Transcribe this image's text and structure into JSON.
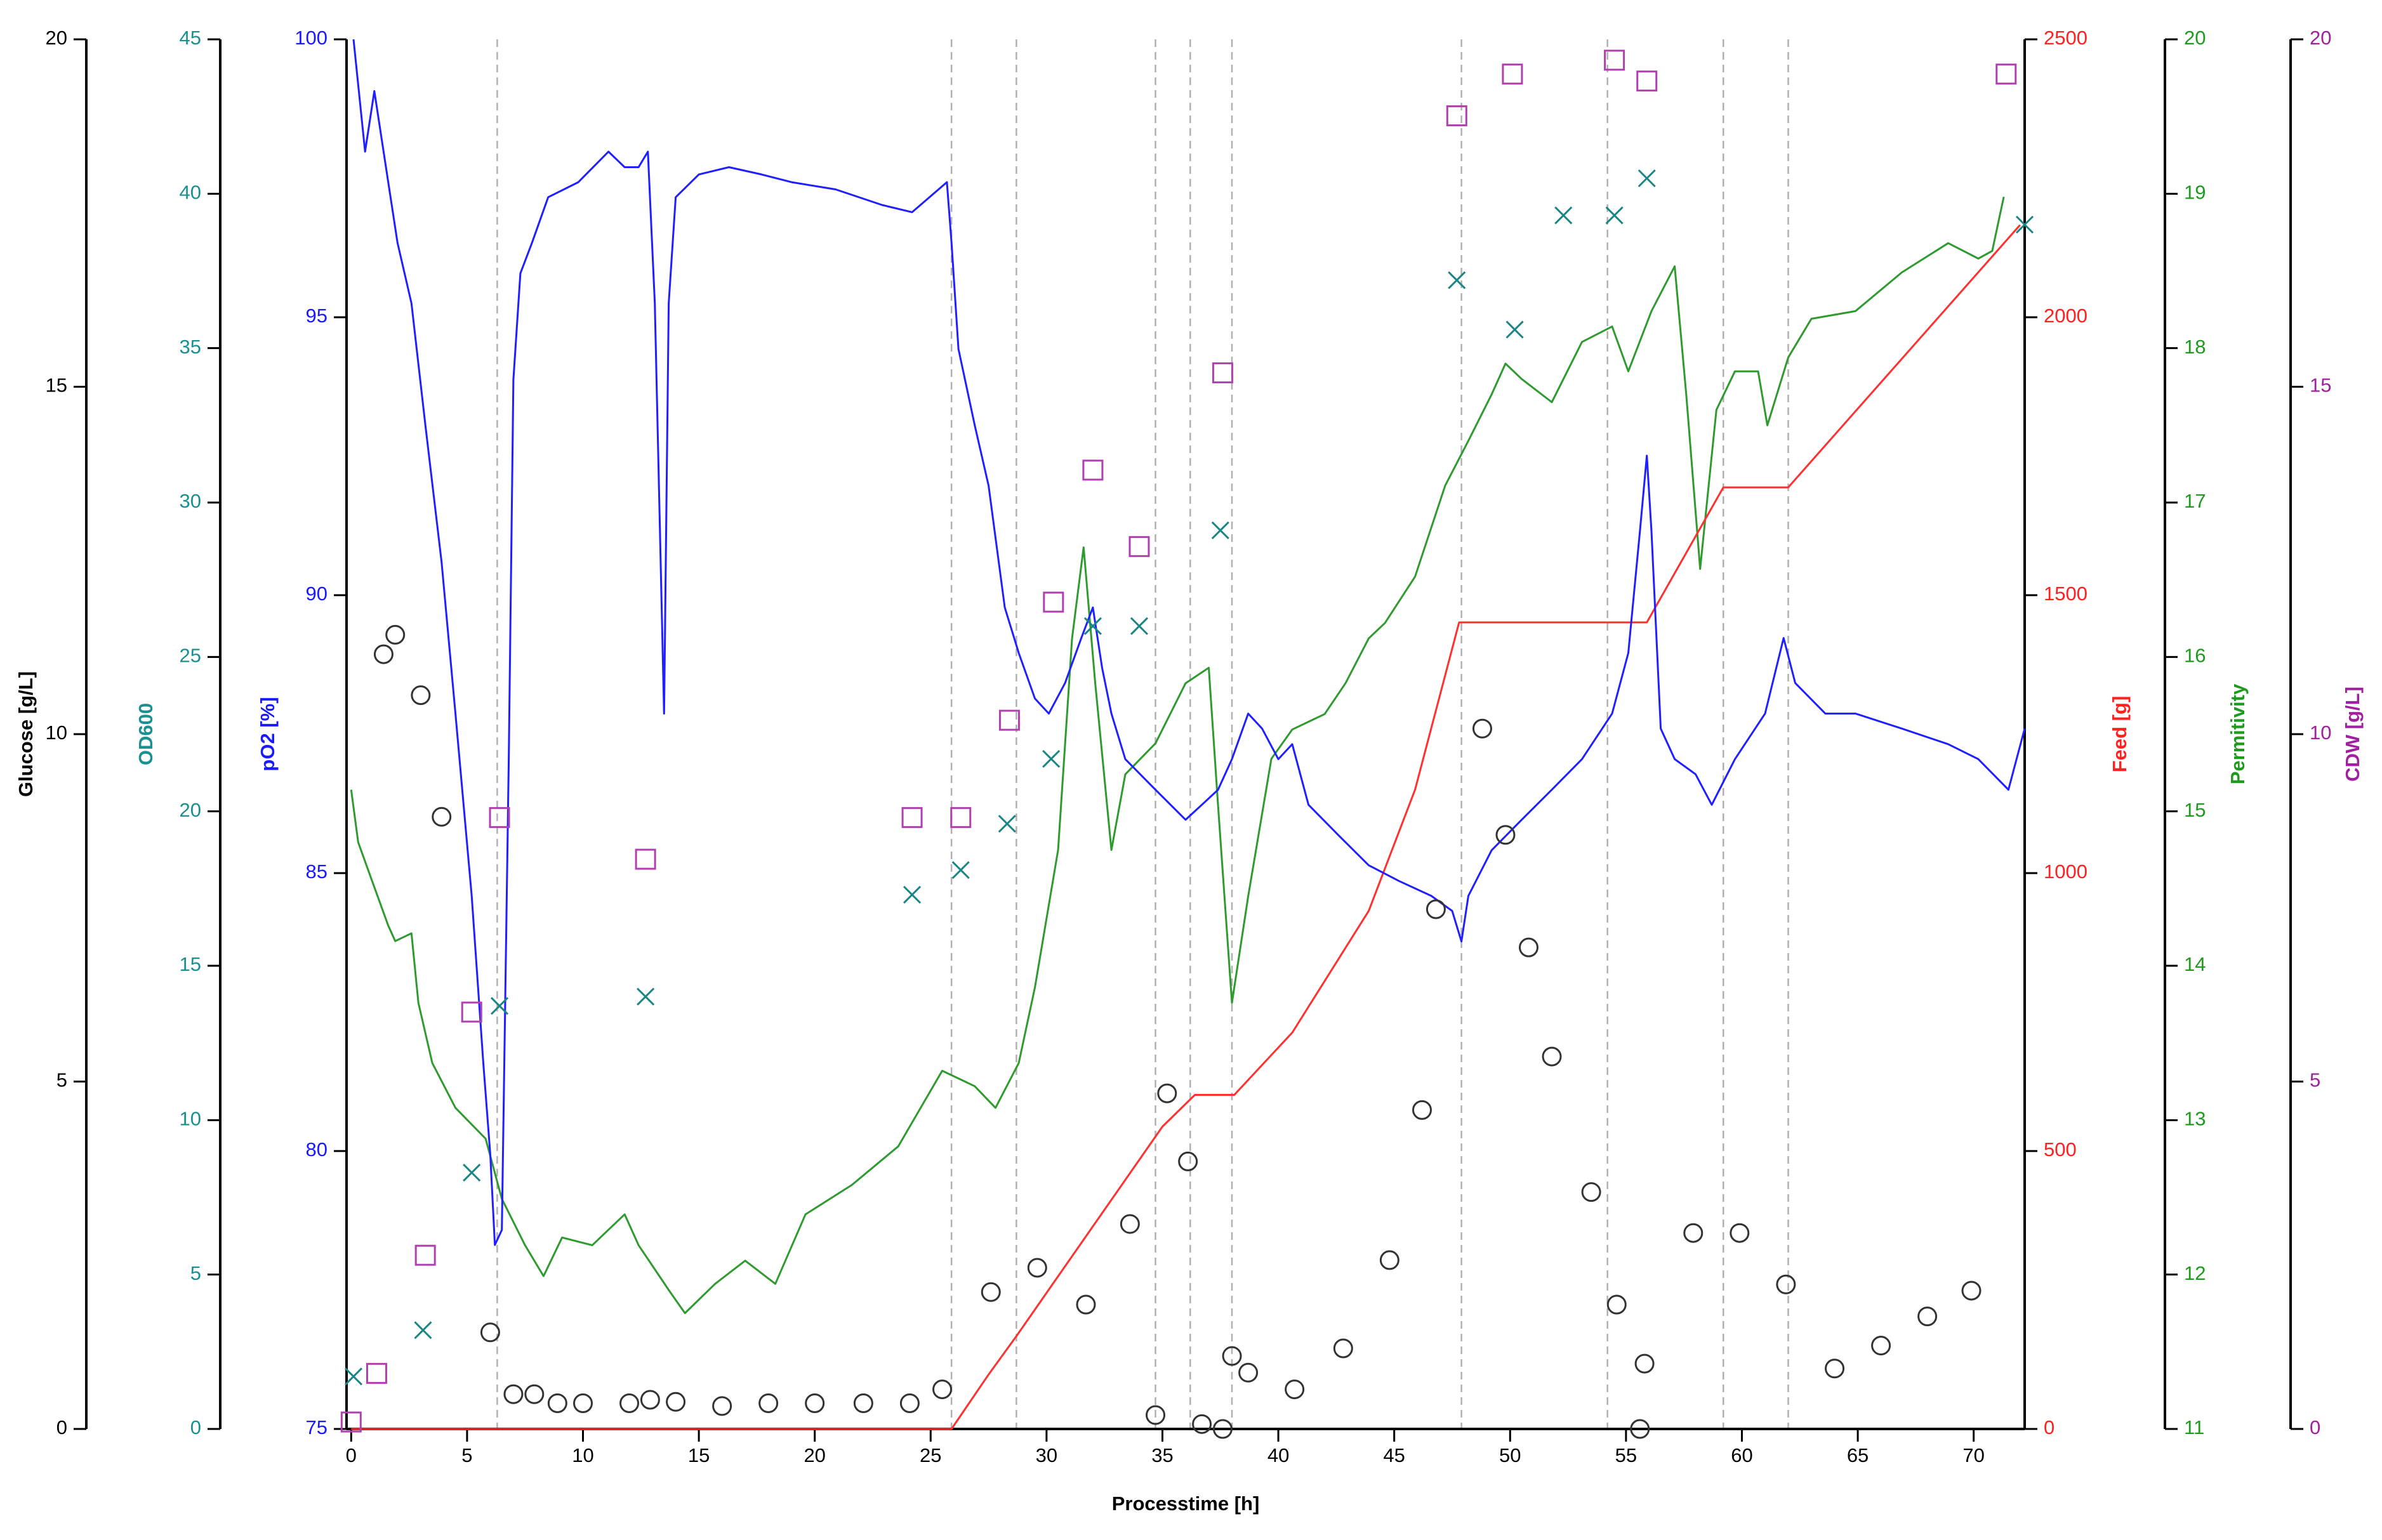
{
  "chart_data": {
    "type": "multi-axis",
    "xlabel": "Processtime [h]",
    "xlim": [
      -0.2,
      72.2
    ],
    "xticks": [
      0,
      5,
      10,
      15,
      20,
      25,
      30,
      35,
      40,
      45,
      50,
      55,
      60,
      65,
      70
    ],
    "vlines": [
      6.3,
      25.9,
      28.7,
      34.7,
      36.2,
      38.0,
      47.9,
      54.2,
      59.2,
      62.0
    ],
    "vline_color": "#b0b0b0",
    "axes": [
      {
        "label": "Glucose [g/L]",
        "color": "#000000",
        "side": "left",
        "ylim": [
          0,
          20
        ],
        "yticks": [
          0,
          5,
          10,
          15,
          20
        ]
      },
      {
        "label": "OD600",
        "color": "#1a9090",
        "side": "left",
        "ylim": [
          0,
          45
        ],
        "yticks": [
          0,
          5,
          10,
          15,
          20,
          25,
          30,
          35,
          40,
          45
        ]
      },
      {
        "label": "pO2 [%]",
        "color": "#1a1aff",
        "side": "left",
        "ylim": [
          75,
          100
        ],
        "yticks": [
          75,
          80,
          85,
          90,
          95,
          100
        ]
      },
      {
        "label": "Feed [g]",
        "color": "#ff2020",
        "side": "right",
        "ylim": [
          0,
          2500
        ],
        "yticks": [
          0,
          500,
          1000,
          1500,
          2000,
          2500
        ]
      },
      {
        "label": "Permitivity",
        "color": "#1f9a1f",
        "side": "right",
        "ylim": [
          11,
          20
        ],
        "yticks": [
          11,
          12,
          13,
          14,
          15,
          16,
          17,
          18,
          19,
          20
        ]
      },
      {
        "label": "CDW [g/L]",
        "color": "#a020a0",
        "side": "right",
        "ylim": [
          0,
          20
        ],
        "yticks": [
          0,
          5,
          10,
          15,
          20
        ]
      }
    ],
    "series": [
      {
        "type": "line",
        "axis": 4,
        "color": "#2f9a2f",
        "x": [
          0.0,
          0.3,
          0.9,
          1.6,
          1.9,
          2.6,
          2.9,
          3.5,
          4.5,
          5.8,
          6.5,
          7.5,
          8.3,
          9.1,
          10.4,
          11.8,
          12.4,
          13.7,
          14.4,
          15.7,
          17.0,
          18.3,
          19.6,
          21.6,
          23.6,
          25.5,
          26.9,
          27.8,
          28.8,
          29.5,
          30.5,
          31.1,
          31.6,
          32.1,
          32.8,
          33.4,
          34.7,
          36.0,
          37.0,
          37.4,
          38.0,
          38.7,
          39.7,
          40.6,
          42.0,
          42.9,
          43.9,
          44.6,
          45.9,
          47.2,
          48.2,
          49.2,
          49.8,
          50.5,
          51.8,
          53.1,
          54.4,
          55.1,
          56.1,
          57.1,
          57.6,
          58.2,
          58.9,
          59.7,
          60.7,
          61.1,
          62.0,
          63.0,
          64.9,
          66.9,
          68.9,
          70.2,
          70.8,
          71.3
        ],
        "values": [
          15.14,
          14.8,
          14.55,
          14.26,
          14.16,
          14.21,
          13.76,
          13.37,
          13.08,
          12.88,
          12.49,
          12.19,
          11.99,
          12.24,
          12.19,
          12.39,
          12.19,
          11.9,
          11.75,
          11.94,
          12.09,
          11.94,
          12.39,
          12.58,
          12.83,
          13.32,
          13.22,
          13.08,
          13.37,
          13.86,
          14.75,
          16.12,
          16.71,
          15.83,
          14.75,
          15.24,
          15.44,
          15.83,
          15.93,
          15.04,
          13.76,
          14.45,
          15.34,
          15.53,
          15.63,
          15.83,
          16.12,
          16.22,
          16.52,
          17.11,
          17.4,
          17.7,
          17.9,
          17.8,
          17.65,
          18.04,
          18.14,
          17.85,
          18.24,
          18.53,
          17.7,
          16.57,
          17.6,
          17.85,
          17.85,
          17.5,
          17.94,
          18.19,
          18.24,
          18.49,
          18.68,
          18.58,
          18.63,
          18.98
        ]
      },
      {
        "type": "line",
        "axis": 3,
        "color": "#ff3030",
        "x": [
          0,
          25.9,
          27.5,
          28.7,
          35.0,
          36.4,
          38.1,
          40.6,
          43.9,
          45.9,
          47.8,
          55.9,
          59.2,
          62.0,
          72.0
        ],
        "values": [
          0,
          0,
          98,
          167,
          544,
          601,
          601,
          713,
          932,
          1150,
          1451,
          1451,
          1694,
          1694,
          2166
        ]
      },
      {
        "type": "line",
        "axis": 2,
        "color": "#1f1fff",
        "x": [
          0.1,
          0.6,
          1.0,
          1.6,
          2.0,
          2.6,
          3.2,
          3.9,
          4.5,
          5.2,
          5.7,
          6.0,
          6.2,
          6.5,
          6.8,
          7.0,
          7.3,
          7.8,
          8.5,
          9.8,
          11.1,
          11.8,
          12.4,
          12.8,
          13.1,
          13.5,
          13.7,
          14.0,
          15.0,
          16.3,
          17.7,
          19.0,
          20.9,
          22.9,
          24.2,
          25.7,
          25.9,
          26.2,
          26.9,
          27.5,
          28.2,
          28.8,
          29.5,
          30.1,
          30.8,
          31.5,
          32.0,
          32.4,
          32.8,
          33.4,
          34.7,
          36.0,
          36.7,
          37.4,
          38.0,
          38.7,
          39.3,
          40.0,
          40.6,
          41.3,
          42.6,
          43.9,
          45.2,
          46.6,
          47.5,
          47.9,
          48.2,
          49.2,
          50.5,
          51.8,
          53.1,
          54.4,
          55.1,
          55.6,
          55.9,
          56.1,
          56.5,
          57.1,
          58.0,
          58.7,
          59.7,
          61.0,
          61.8,
          62.3,
          63.6,
          64.9,
          66.9,
          68.9,
          70.2,
          71.5,
          72.2
        ],
        "values": [
          100.0,
          97.98,
          99.07,
          97.43,
          96.34,
          95.25,
          93.06,
          90.6,
          87.87,
          84.59,
          81.58,
          79.95,
          78.31,
          78.58,
          87.05,
          93.88,
          95.79,
          96.34,
          97.16,
          97.43,
          97.98,
          97.7,
          97.7,
          97.98,
          95.25,
          87.87,
          95.25,
          97.16,
          97.57,
          97.7,
          97.57,
          97.43,
          97.3,
          97.02,
          96.89,
          97.43,
          96.34,
          94.43,
          93.06,
          91.97,
          89.78,
          88.96,
          88.14,
          87.87,
          88.42,
          89.23,
          89.78,
          88.69,
          87.87,
          87.05,
          86.5,
          85.96,
          86.23,
          86.5,
          87.05,
          87.87,
          87.6,
          87.05,
          87.32,
          86.23,
          85.68,
          85.14,
          84.86,
          84.59,
          84.32,
          83.77,
          84.59,
          85.41,
          85.96,
          86.5,
          87.05,
          87.87,
          88.96,
          91.15,
          92.51,
          91.15,
          87.6,
          87.05,
          86.78,
          86.23,
          87.05,
          87.87,
          89.23,
          88.42,
          87.87,
          87.87,
          87.6,
          87.32,
          87.05,
          86.5,
          87.6
        ]
      },
      {
        "type": "scatter",
        "marker": "circle",
        "axis": 0,
        "color": "#333333",
        "x": [
          1.4,
          1.9,
          3.0,
          3.9,
          6.0,
          7.0,
          7.9,
          8.9,
          10.0,
          12.0,
          12.9,
          14.0,
          16.0,
          18.0,
          20.0,
          22.1,
          24.1,
          25.5,
          27.6,
          29.6,
          31.7,
          33.6,
          34.7,
          35.2,
          36.1,
          36.7,
          37.6,
          38.0,
          38.7,
          40.7,
          42.8,
          44.8,
          46.2,
          46.8,
          48.8,
          49.8,
          50.8,
          51.8,
          53.5,
          54.6,
          55.6,
          55.8,
          57.9,
          59.9,
          61.9,
          64.0,
          66.0,
          68.0,
          69.9
        ],
        "values": [
          11.15,
          11.43,
          10.56,
          8.81,
          1.39,
          0.5,
          0.5,
          0.37,
          0.37,
          0.37,
          0.42,
          0.39,
          0.33,
          0.37,
          0.37,
          0.37,
          0.37,
          0.57,
          1.97,
          2.32,
          1.79,
          2.95,
          0.2,
          4.83,
          3.85,
          0.07,
          0,
          1.05,
          0.81,
          0.57,
          1.16,
          2.43,
          4.59,
          7.48,
          10.08,
          8.55,
          6.93,
          5.36,
          3.41,
          1.79,
          0,
          0.94,
          2.82,
          2.82,
          2.08,
          0.87,
          1.2,
          1.62,
          1.99
        ]
      },
      {
        "type": "scatter",
        "marker": "x",
        "axis": 1,
        "color": "#1a8585",
        "x": [
          0.1,
          3.1,
          5.2,
          6.4,
          12.7,
          24.2,
          26.3,
          28.3,
          30.2,
          32.0,
          34.0,
          37.5,
          47.7,
          50.2,
          52.3,
          54.5,
          55.9,
          72.2
        ],
        "values": [
          1.7,
          3.2,
          8.3,
          13.7,
          14.0,
          17.3,
          18.1,
          19.6,
          21.7,
          26.0,
          26.0,
          29.1,
          37.2,
          35.6,
          39.3,
          39.3,
          40.5,
          39.0
        ]
      },
      {
        "type": "scatter",
        "marker": "square",
        "axis": 5,
        "color": "#b040b0",
        "x": [
          0.0,
          1.1,
          3.2,
          5.2,
          6.4,
          12.7,
          24.2,
          26.3,
          28.4,
          30.3,
          32.0,
          34.0,
          37.6,
          47.7,
          50.1,
          54.5,
          55.9,
          71.4
        ],
        "values": [
          0.1,
          0.8,
          2.5,
          6.0,
          8.8,
          8.2,
          8.8,
          8.8,
          10.2,
          11.9,
          13.8,
          12.7,
          15.2,
          18.9,
          19.5,
          19.7,
          19.4,
          19.5
        ]
      }
    ]
  }
}
